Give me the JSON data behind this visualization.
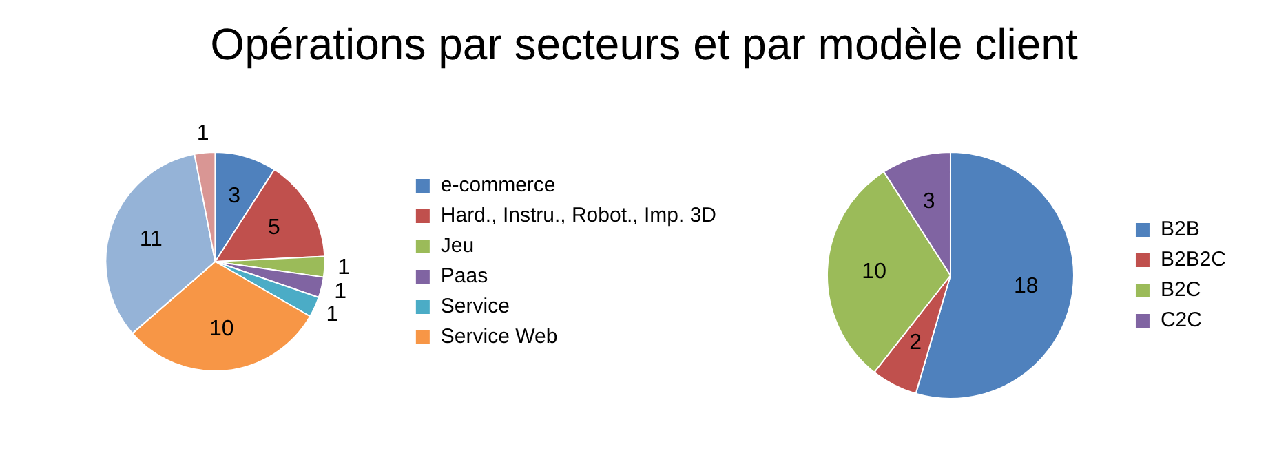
{
  "chart_data": [
    {
      "type": "pie",
      "title": "Opérations par secteurs et par modèle client",
      "categories": [
        "e-commerce",
        "Hard., Instru., Robot., Imp. 3D",
        "Jeu",
        "Paas",
        "Service",
        "Service Web",
        null,
        null
      ],
      "values": [
        3,
        5,
        1,
        1,
        1,
        10,
        11,
        1
      ],
      "colors": [
        "#4f81bd",
        "#c0504d",
        "#9bbb59",
        "#8064a2",
        "#4bacc6",
        "#f79646",
        "#95b3d7",
        "#d99694"
      ],
      "data_labels": true,
      "legend": "right"
    },
    {
      "type": "pie",
      "categories": [
        "B2B",
        "B2B2C",
        "B2C",
        "C2C"
      ],
      "values": [
        18,
        2,
        10,
        3
      ],
      "colors": [
        "#4f81bd",
        "#c0504d",
        "#9bbb59",
        "#8064a2"
      ],
      "data_labels": true,
      "legend": "right"
    }
  ]
}
